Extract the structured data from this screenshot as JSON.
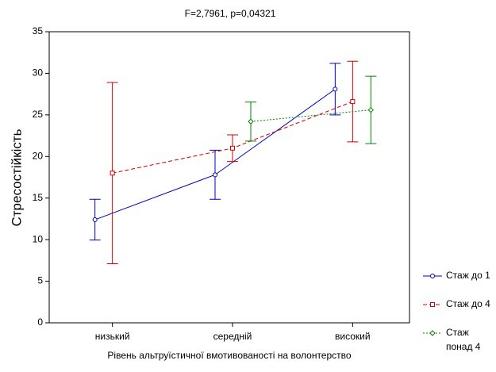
{
  "chart_data": {
    "type": "line",
    "title": "F=2,7961, p=0,04321",
    "x_label": "Рівень альтруїстичної вмотивованості на волонтерство",
    "y_label": "Стресостійкість",
    "categories": [
      "низький",
      "середній",
      "високий"
    ],
    "series": [
      {
        "name": "Стаж до 1",
        "color": "#0000c0",
        "style": "solid",
        "marker": "circle",
        "values": [
          12.4,
          17.8,
          28.1
        ],
        "errors": [
          2.45,
          2.95,
          3.1
        ]
      },
      {
        "name": "Стаж до 4",
        "color": "#d00000",
        "style": "dashed",
        "marker": "square",
        "values": [
          18.0,
          21.0,
          26.6
        ],
        "errors": [
          10.9,
          1.6,
          4.85
        ]
      },
      {
        "name": "Стаж понад 4",
        "color": "#008000",
        "style": "dotted",
        "marker": "diamond",
        "values": [
          null,
          24.2,
          25.6
        ],
        "errors": [
          null,
          2.35,
          4.05
        ]
      }
    ],
    "ylim": [
      0,
      35
    ],
    "yticks": [
      0,
      5,
      10,
      15,
      20,
      25,
      30,
      35
    ],
    "grid": false
  }
}
